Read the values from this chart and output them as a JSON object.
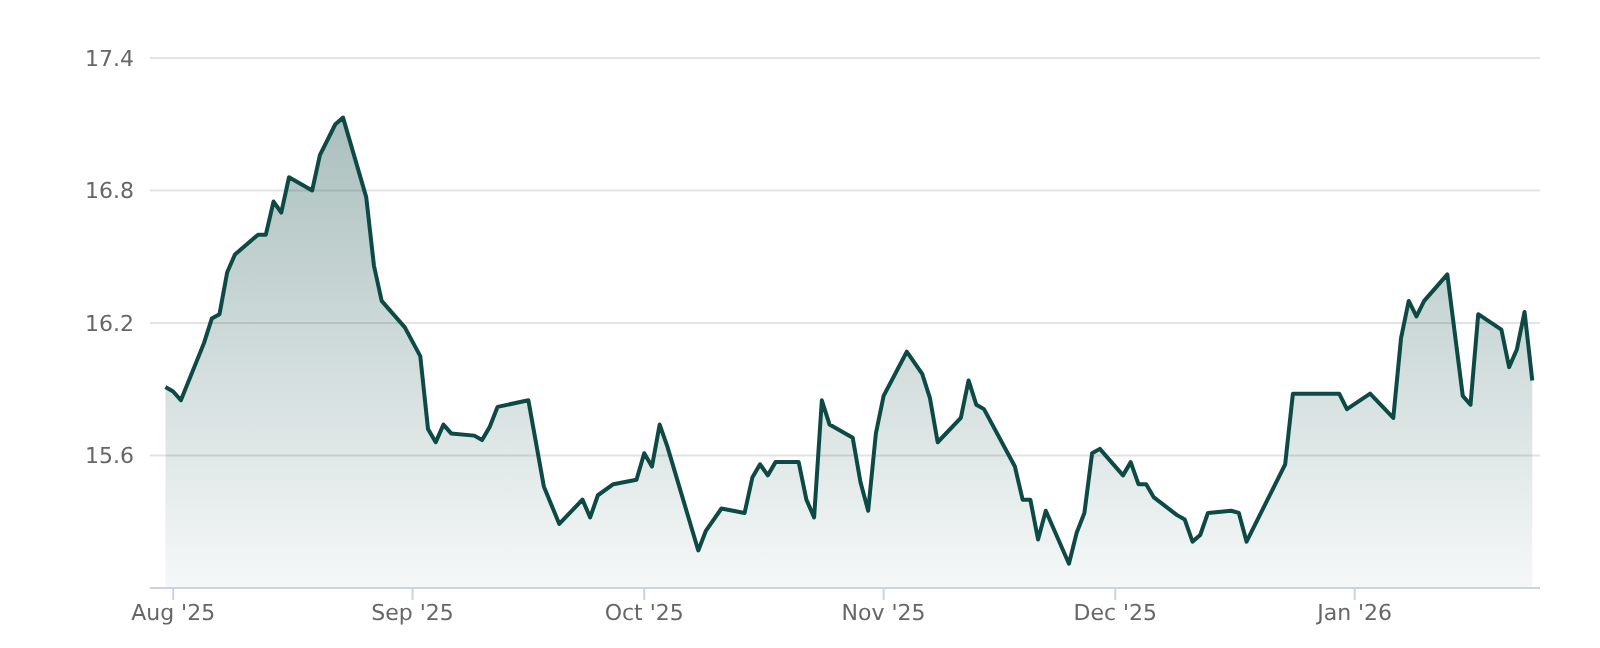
{
  "chart_data": {
    "type": "area",
    "x": [
      "2025-07-31",
      "2025-08-01",
      "2025-08-02",
      "2025-08-05",
      "2025-08-06",
      "2025-08-07",
      "2025-08-08",
      "2025-08-09",
      "2025-08-12",
      "2025-08-13",
      "2025-08-14",
      "2025-08-15",
      "2025-08-16",
      "2025-08-19",
      "2025-08-20",
      "2025-08-22",
      "2025-08-23",
      "2025-08-26",
      "2025-08-27",
      "2025-08-28",
      "2025-08-31",
      "2025-09-02",
      "2025-09-03",
      "2025-09-04",
      "2025-09-05",
      "2025-09-06",
      "2025-09-09",
      "2025-09-10",
      "2025-09-11",
      "2025-09-12",
      "2025-09-16",
      "2025-09-18",
      "2025-09-20",
      "2025-09-23",
      "2025-09-24",
      "2025-09-25",
      "2025-09-27",
      "2025-09-30",
      "2025-10-01",
      "2025-10-02",
      "2025-10-03",
      "2025-10-04",
      "2025-10-08",
      "2025-10-09",
      "2025-10-11",
      "2025-10-14",
      "2025-10-15",
      "2025-10-16",
      "2025-10-17",
      "2025-10-18",
      "2025-10-21",
      "2025-10-22",
      "2025-10-23",
      "2025-10-24",
      "2025-10-25",
      "2025-10-28",
      "2025-10-29",
      "2025-10-30",
      "2025-10-31",
      "2025-11-01",
      "2025-11-04",
      "2025-11-06",
      "2025-11-07",
      "2025-11-08",
      "2025-11-11",
      "2025-11-12",
      "2025-11-13",
      "2025-11-14",
      "2025-11-18",
      "2025-11-19",
      "2025-11-20",
      "2025-11-21",
      "2025-11-22",
      "2025-11-25",
      "2025-11-26",
      "2025-11-27",
      "2025-11-28",
      "2025-11-29",
      "2025-12-02",
      "2025-12-03",
      "2025-12-04",
      "2025-12-05",
      "2025-12-06",
      "2025-12-09",
      "2025-12-10",
      "2025-12-11",
      "2025-12-12",
      "2025-12-13",
      "2025-12-16",
      "2025-12-17",
      "2025-12-18",
      "2025-12-23",
      "2025-12-24",
      "2025-12-30",
      "2025-12-31",
      "2026-01-03",
      "2026-01-06",
      "2026-01-07",
      "2026-01-08",
      "2026-01-09",
      "2026-01-10",
      "2026-01-13",
      "2026-01-15",
      "2026-01-16",
      "2026-01-17",
      "2026-01-20",
      "2026-01-21",
      "2026-01-22",
      "2026-01-23",
      "2026-01-24"
    ],
    "series": [
      {
        "color": "#0d4a45",
        "values": [
          15.91,
          15.89,
          15.85,
          16.11,
          16.22,
          16.24,
          16.43,
          16.51,
          16.6,
          16.6,
          16.75,
          16.7,
          16.86,
          16.8,
          16.96,
          17.1,
          17.13,
          16.77,
          16.46,
          16.3,
          16.18,
          16.05,
          15.72,
          15.66,
          15.74,
          15.7,
          15.69,
          15.67,
          15.73,
          15.82,
          15.85,
          15.46,
          15.29,
          15.4,
          15.32,
          15.42,
          15.47,
          15.49,
          15.61,
          15.55,
          15.74,
          15.64,
          15.17,
          15.26,
          15.36,
          15.34,
          15.5,
          15.56,
          15.51,
          15.57,
          15.57,
          15.4,
          15.32,
          15.85,
          15.74,
          15.68,
          15.48,
          15.35,
          15.7,
          15.87,
          16.07,
          15.97,
          15.86,
          15.66,
          15.77,
          15.94,
          15.83,
          15.81,
          15.55,
          15.4,
          15.4,
          15.22,
          15.35,
          15.11,
          15.25,
          15.34,
          15.61,
          15.63,
          15.51,
          15.57,
          15.47,
          15.47,
          15.41,
          15.33,
          15.31,
          15.21,
          15.24,
          15.34,
          15.35,
          15.34,
          15.21,
          15.56,
          15.88,
          15.88,
          15.81,
          15.88,
          15.77,
          16.13,
          16.3,
          16.23,
          16.3,
          16.42,
          15.87,
          15.83,
          16.24,
          16.17,
          16.0,
          16.08,
          16.25,
          15.94
        ]
      }
    ],
    "xlim": [
      "2025-07-29",
      "2026-01-25"
    ],
    "xticks": [
      {
        "value": "2025-08-01",
        "label": "Aug '25"
      },
      {
        "value": "2025-09-01",
        "label": "Sep '25"
      },
      {
        "value": "2025-10-01",
        "label": "Oct '25"
      },
      {
        "value": "2025-11-01",
        "label": "Nov '25"
      },
      {
        "value": "2025-12-01",
        "label": "Dec '25"
      },
      {
        "value": "2026-01-01",
        "label": "Jan '26"
      }
    ],
    "ylim": [
      15.0,
      17.4
    ],
    "yticks": [
      15.6,
      16.2,
      16.8,
      17.4
    ],
    "grid": "y",
    "legend": false
  }
}
